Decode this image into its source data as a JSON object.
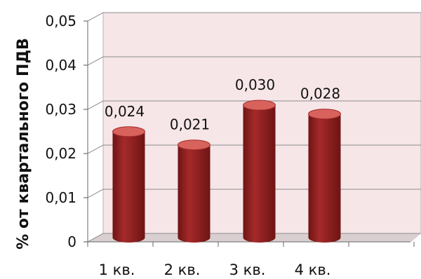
{
  "chart_data": {
    "type": "bar",
    "categories": [
      "1 кв.",
      "2 кв.",
      "3 кв.",
      "4 кв."
    ],
    "values": [
      0.024,
      0.021,
      0.03,
      0.028
    ],
    "value_labels": [
      "0,024",
      "0,021",
      "0,030",
      "0,028"
    ],
    "ylabel": "% от квартального ПДВ",
    "ylim": [
      0,
      0.05
    ],
    "yticks": [
      0,
      0.01,
      0.02,
      0.03,
      0.04,
      0.05
    ],
    "ytick_labels": [
      "0",
      "0,01",
      "0,02",
      "0,03",
      "0,04",
      "0,05"
    ],
    "grid": true,
    "style": "3d-cylinder",
    "colors": {
      "bar": "#a52a2a",
      "bar_dark": "#6e1414",
      "bar_light": "#d8625c",
      "wall": "#f6e6e8",
      "floor": "#d9cfd0"
    }
  }
}
